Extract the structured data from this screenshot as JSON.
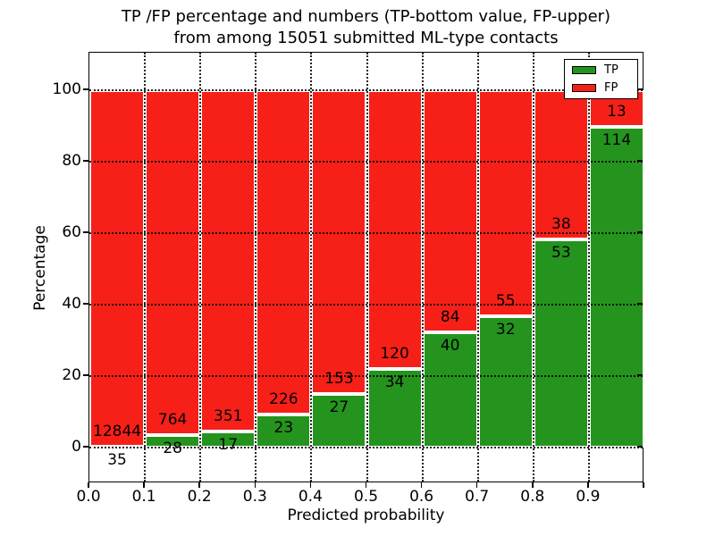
{
  "figure": {
    "title_line1": "TP /FP percentage and numbers (TP-bottom value, FP-upper)",
    "title_line2": "from among 15051 submitted ML-type contacts"
  },
  "chart_data": {
    "type": "bar",
    "subtype": "stacked-percentage",
    "title": "TP /FP percentage and numbers (TP-bottom value, FP-upper) from among 15051 submitted ML-type contacts",
    "total_contacts": 15051,
    "xlabel": "Predicted probability",
    "ylabel": "Percentage",
    "x_tick_labels": [
      "0.0",
      "0.1",
      "0.2",
      "0.3",
      "0.4",
      "0.5",
      "0.6",
      "0.7",
      "0.8",
      "0.9"
    ],
    "y_ticks": [
      0,
      20,
      40,
      60,
      80,
      100
    ],
    "xlim": [
      0.0,
      1.0
    ],
    "ylim": [
      -10,
      110.5
    ],
    "bin_width": 0.1,
    "bin_left_edges": [
      0.0,
      0.1,
      0.2,
      0.3,
      0.4,
      0.5,
      0.6,
      0.7,
      0.8,
      0.9
    ],
    "grid": "dotted",
    "bar_edge_color": "#ffffff",
    "legend_position": "upper-right",
    "series": [
      {
        "name": "TP",
        "stack_position": "bottom",
        "color": "#24941e",
        "counts": [
          35,
          28,
          17,
          23,
          27,
          34,
          40,
          32,
          53,
          114
        ]
      },
      {
        "name": "FP",
        "stack_position": "top",
        "color": "#f62019",
        "counts": [
          12844,
          764,
          351,
          226,
          153,
          120,
          84,
          55,
          38,
          13
        ]
      }
    ],
    "tp_percent_of_bin": [
      0.27,
      3.54,
      4.62,
      9.24,
      15.0,
      22.08,
      32.26,
      36.78,
      58.24,
      89.76
    ]
  }
}
